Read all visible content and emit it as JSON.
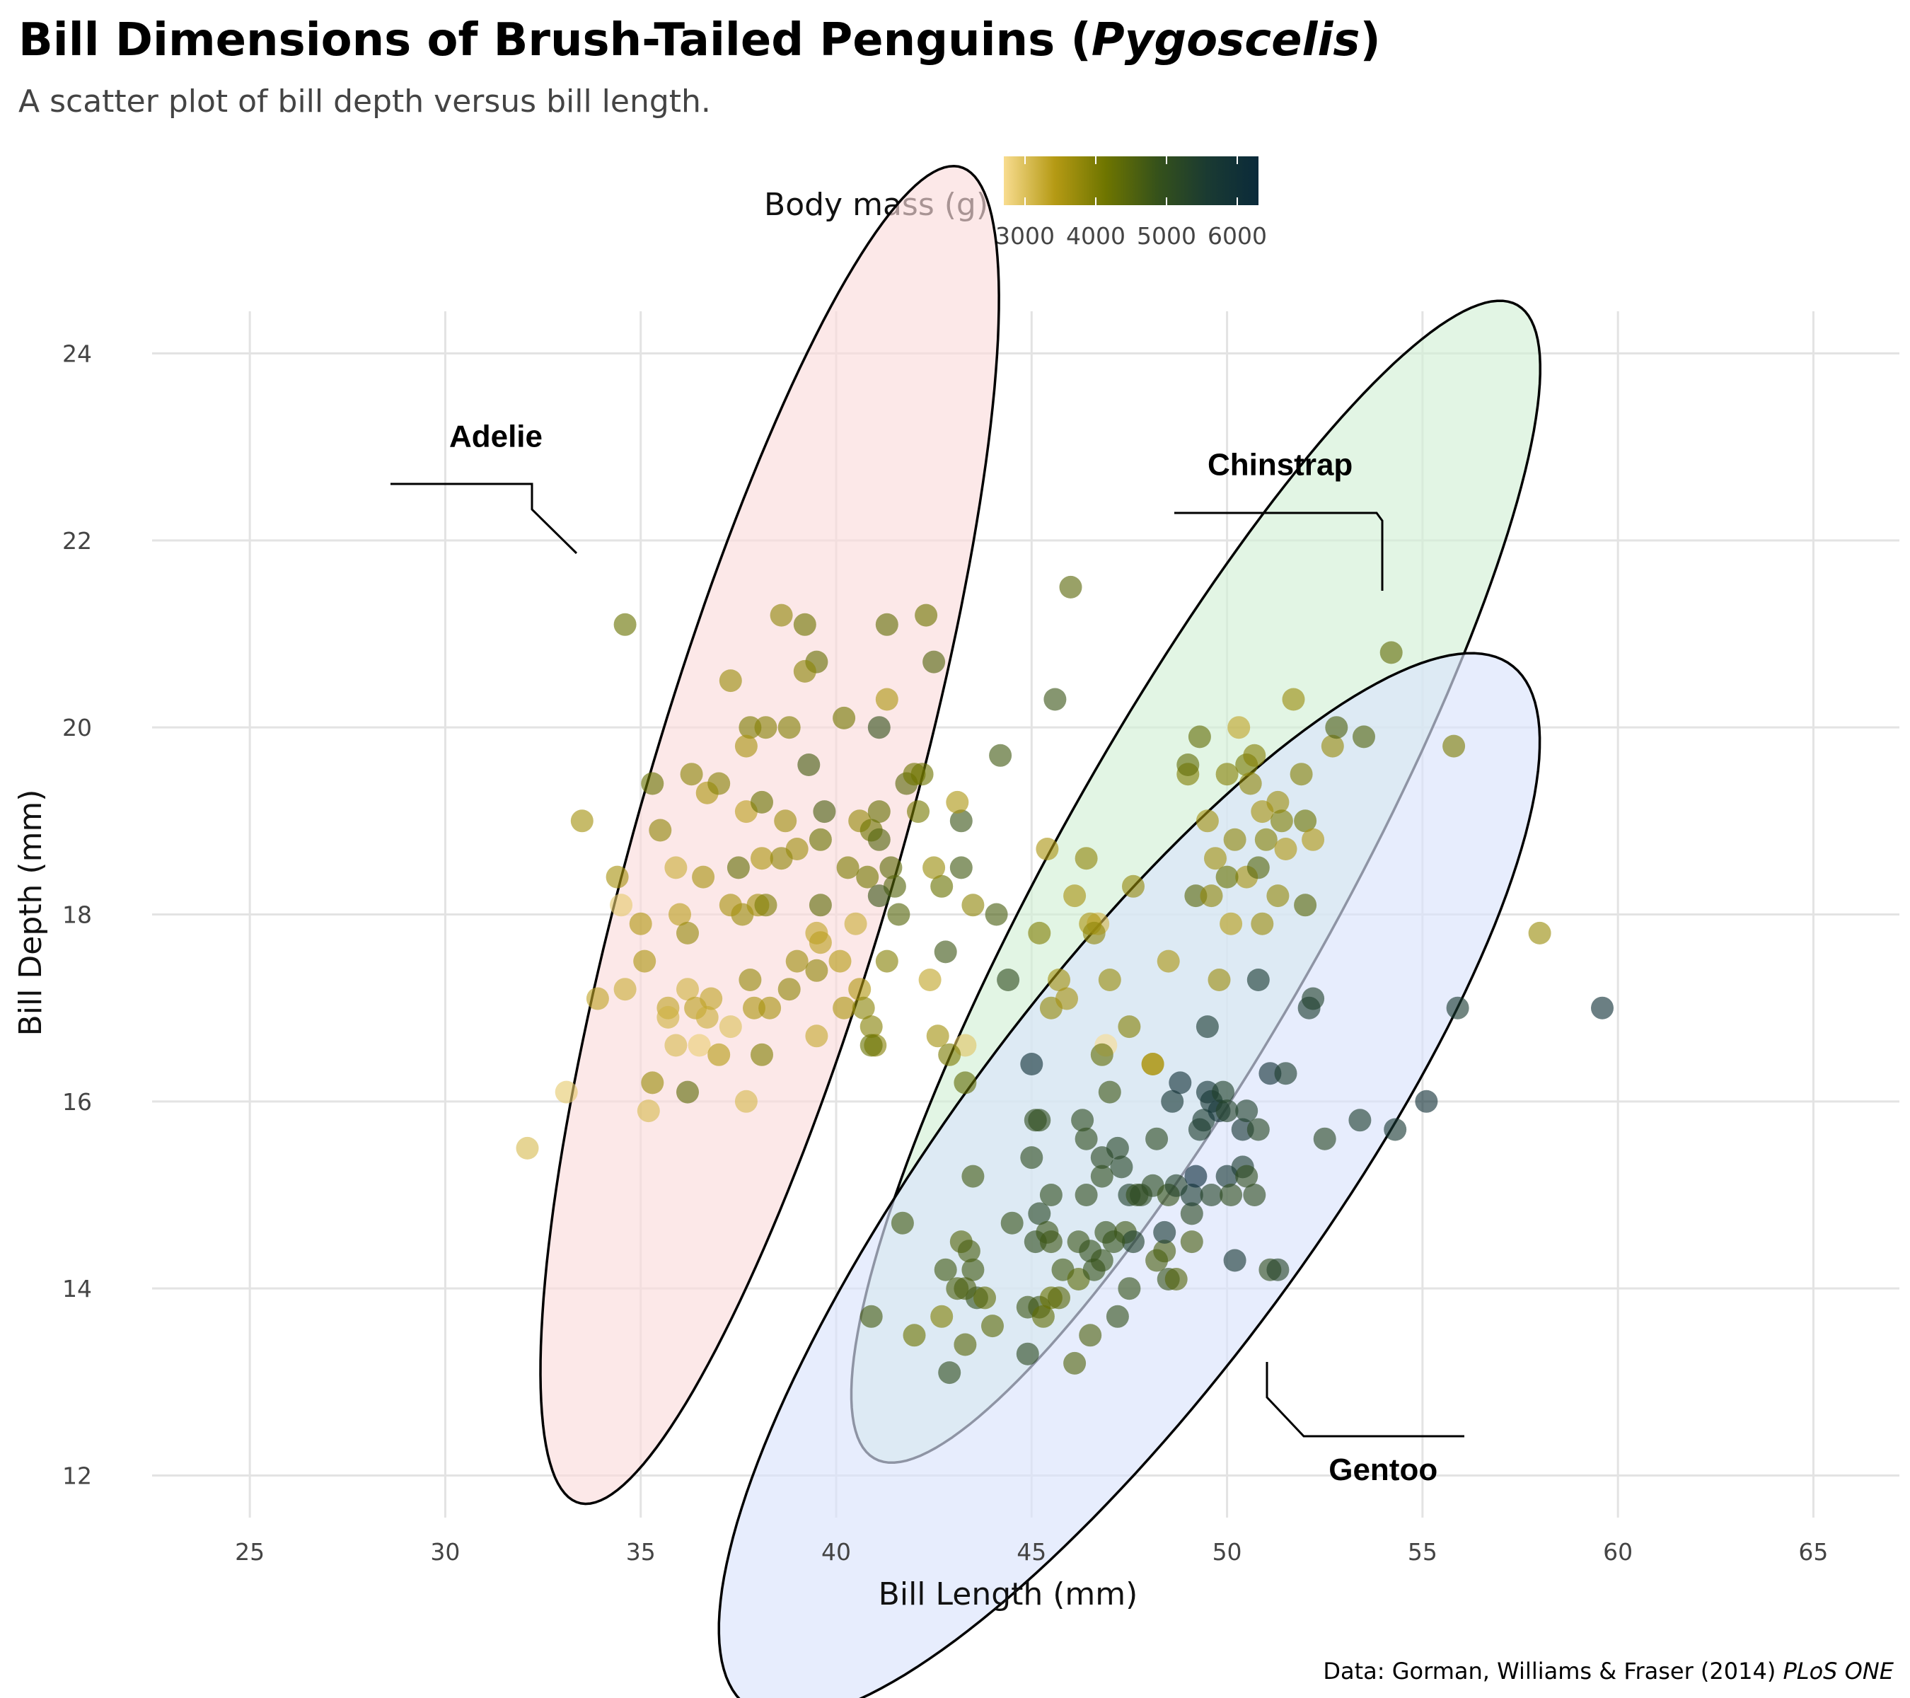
{
  "chart_data": {
    "type": "scatter",
    "title": "Bill Dimensions of Brush-Tailed Penguins (",
    "title_italic": "Pygoscelis",
    "title_end": ")",
    "subtitle": "A scatter plot of bill depth versus bill length.",
    "xlabel": "Bill Length (mm)",
    "ylabel": "Bill Depth (mm)",
    "xlim": [
      22.5,
      67.2
    ],
    "ylim": [
      11.55,
      24.45
    ],
    "xticks": [
      25,
      30,
      35,
      40,
      45,
      50,
      55,
      60,
      65
    ],
    "yticks": [
      12,
      14,
      16,
      18,
      20,
      22,
      24
    ],
    "grid": true,
    "legend": {
      "title": "Body mass (g)",
      "placement": "top",
      "ticks": [
        3000,
        4000,
        5000,
        6000
      ],
      "range": [
        2700,
        6300
      ],
      "colors": [
        "#f8dc8f",
        "#b59a14",
        "#6e7500",
        "#36521a",
        "#1a3a32",
        "#0a2a3a"
      ]
    },
    "caption": "Data: Gorman, Williams & Fraser (2014) ",
    "caption_italic": "PLoS ONE",
    "ellipses": [
      {
        "group": "Adelie",
        "fill": "#fbdcdc",
        "cx": 38.3,
        "cy": 18.85,
        "rx": 8.8,
        "ry": 2.85,
        "angle_deg": 52
      },
      {
        "group": "Chinstrap",
        "fill": "#d3f0d5",
        "cx": 49.2,
        "cy": 18.35,
        "rx": 10.5,
        "ry": 2.45,
        "angle_deg": 34
      },
      {
        "group": "Gentoo",
        "fill": "#dae3fc",
        "cx": 47.5,
        "cy": 15.1,
        "rx": 11.6,
        "ry": 2.85,
        "angle_deg": 26
      }
    ],
    "labels": [
      {
        "text": "Adelie",
        "x": 30.1,
        "y": 23.0
      },
      {
        "text": "Chinstrap",
        "x": 49.5,
        "y": 22.7
      },
      {
        "text": "Gentoo",
        "x": 52.6,
        "y": 11.95
      }
    ],
    "points": [
      [
        34.6,
        21.1,
        4200
      ],
      [
        38.6,
        21.2,
        3800
      ],
      [
        39.2,
        21.1,
        4150
      ],
      [
        41.3,
        21.1,
        4300
      ],
      [
        42.3,
        21.2,
        4150
      ],
      [
        46.0,
        21.5,
        4400
      ],
      [
        37.3,
        20.5,
        3700
      ],
      [
        39.5,
        20.7,
        4250
      ],
      [
        39.2,
        20.6,
        3850
      ],
      [
        42.5,
        20.7,
        4500
      ],
      [
        41.3,
        20.3,
        3500
      ],
      [
        37.8,
        20.0,
        4000
      ],
      [
        38.2,
        20.0,
        3900
      ],
      [
        38.8,
        20.0,
        3950
      ],
      [
        40.2,
        20.1,
        4100
      ],
      [
        41.1,
        20.0,
        4900
      ],
      [
        35.3,
        19.4,
        4200
      ],
      [
        36.3,
        19.5,
        3850
      ],
      [
        37.7,
        19.8,
        3550
      ],
      [
        39.3,
        19.6,
        4650
      ],
      [
        41.8,
        19.4,
        4400
      ],
      [
        42.2,
        19.5,
        4150
      ],
      [
        42.0,
        19.5,
        4150
      ],
      [
        33.5,
        19.0,
        3600
      ],
      [
        35.5,
        18.9,
        3800
      ],
      [
        36.7,
        19.3,
        3500
      ],
      [
        37.0,
        19.4,
        3900
      ],
      [
        37.7,
        19.1,
        3350
      ],
      [
        38.1,
        19.2,
        4200
      ],
      [
        38.7,
        19.0,
        3650
      ],
      [
        39.0,
        18.7,
        3650
      ],
      [
        39.7,
        19.1,
        4600
      ],
      [
        40.6,
        19.0,
        3750
      ],
      [
        40.9,
        18.9,
        4150
      ],
      [
        41.1,
        19.1,
        4250
      ],
      [
        42.1,
        19.1,
        4050
      ],
      [
        43.2,
        19.0,
        4800
      ],
      [
        43.1,
        19.2,
        3500
      ],
      [
        34.4,
        18.4,
        3550
      ],
      [
        34.5,
        18.1,
        2900
      ],
      [
        35.0,
        17.9,
        3450
      ],
      [
        35.9,
        18.5,
        3200
      ],
      [
        36.0,
        18.0,
        3350
      ],
      [
        36.6,
        18.4,
        3550
      ],
      [
        36.2,
        17.8,
        3750
      ],
      [
        37.6,
        18.0,
        3700
      ],
      [
        38.0,
        18.1,
        3600
      ],
      [
        38.1,
        18.6,
        3500
      ],
      [
        38.6,
        18.6,
        3800
      ],
      [
        39.6,
        18.8,
        4200
      ],
      [
        40.3,
        18.5,
        4000
      ],
      [
        40.8,
        18.4,
        4100
      ],
      [
        41.4,
        18.5,
        4350
      ],
      [
        41.5,
        18.3,
        4450
      ],
      [
        42.7,
        18.3,
        4200
      ],
      [
        43.2,
        18.5,
        4700
      ],
      [
        42.5,
        18.5,
        3700
      ],
      [
        43.5,
        18.1,
        3800
      ],
      [
        44.1,
        18.0,
        4600
      ],
      [
        37.3,
        18.1,
        3550
      ],
      [
        37.5,
        18.5,
        4300
      ],
      [
        38.2,
        18.1,
        4000
      ],
      [
        39.5,
        17.8,
        3300
      ],
      [
        39.6,
        17.7,
        3350
      ],
      [
        40.5,
        17.9,
        3200
      ],
      [
        41.1,
        18.2,
        4800
      ],
      [
        41.6,
        18.0,
        4450
      ],
      [
        32.1,
        15.5,
        3050
      ],
      [
        33.1,
        16.1,
        2900
      ],
      [
        33.9,
        17.1,
        3300
      ],
      [
        34.6,
        17.2,
        3200
      ],
      [
        35.1,
        17.5,
        3500
      ],
      [
        35.2,
        15.9,
        3050
      ],
      [
        35.3,
        16.2,
        3700
      ],
      [
        35.7,
        17.0,
        3300
      ],
      [
        35.7,
        16.9,
        3150
      ],
      [
        35.9,
        16.6,
        3050
      ],
      [
        36.2,
        17.2,
        3150
      ],
      [
        36.4,
        17.0,
        3350
      ],
      [
        36.5,
        16.6,
        2850
      ],
      [
        36.7,
        16.9,
        3200
      ],
      [
        36.8,
        17.1,
        3300
      ],
      [
        37.0,
        16.5,
        3400
      ],
      [
        37.3,
        16.8,
        3000
      ],
      [
        37.8,
        17.3,
        3750
      ],
      [
        37.9,
        17.0,
        3500
      ],
      [
        37.7,
        16.0,
        3075
      ],
      [
        38.1,
        16.5,
        3950
      ],
      [
        38.3,
        17.0,
        3550
      ],
      [
        38.8,
        17.2,
        3800
      ],
      [
        39.0,
        17.5,
        3650
      ],
      [
        39.5,
        17.4,
        3800
      ],
      [
        39.5,
        16.7,
        3250
      ],
      [
        40.1,
        17.5,
        3400
      ],
      [
        40.2,
        17.0,
        3500
      ],
      [
        40.6,
        17.2,
        3450
      ],
      [
        40.7,
        17.0,
        3850
      ],
      [
        40.9,
        16.8,
        3900
      ],
      [
        41.0,
        16.6,
        3900
      ],
      [
        41.3,
        17.5,
        3900
      ],
      [
        42.4,
        17.3,
        3300
      ],
      [
        42.6,
        16.7,
        3600
      ],
      [
        43.3,
        16.6,
        2950
      ],
      [
        36.2,
        16.1,
        4350
      ],
      [
        40.9,
        16.6,
        4200
      ],
      [
        39.6,
        18.1,
        4350
      ],
      [
        41.1,
        18.8,
        4500
      ],
      [
        45.6,
        20.3,
        4800
      ],
      [
        46.1,
        18.2,
        3550
      ],
      [
        46.4,
        18.6,
        3800
      ],
      [
        46.7,
        17.9,
        3100
      ],
      [
        46.9,
        16.6,
        2700
      ],
      [
        47.0,
        17.3,
        3700
      ],
      [
        47.5,
        16.8,
        3900
      ],
      [
        47.6,
        18.3,
        3750
      ],
      [
        48.1,
        16.4,
        3500
      ],
      [
        48.5,
        17.5,
        3500
      ],
      [
        49.0,
        19.5,
        3950
      ],
      [
        49.0,
        19.6,
        4300
      ],
      [
        49.2,
        18.2,
        4400
      ],
      [
        49.3,
        19.9,
        4300
      ],
      [
        49.5,
        19.0,
        3600
      ],
      [
        49.6,
        18.2,
        3800
      ],
      [
        49.7,
        18.6,
        3600
      ],
      [
        50.0,
        19.5,
        3900
      ],
      [
        50.1,
        17.9,
        3400
      ],
      [
        50.2,
        18.8,
        3800
      ],
      [
        50.3,
        20.0,
        3300
      ],
      [
        50.5,
        19.6,
        4050
      ],
      [
        50.5,
        18.4,
        3550
      ],
      [
        50.6,
        19.4,
        3800
      ],
      [
        50.7,
        19.7,
        3900
      ],
      [
        50.8,
        18.5,
        4450
      ],
      [
        50.9,
        19.1,
        3550
      ],
      [
        51.0,
        18.8,
        3900
      ],
      [
        51.3,
        18.2,
        3750
      ],
      [
        51.3,
        19.2,
        3650
      ],
      [
        51.4,
        19.0,
        3950
      ],
      [
        51.5,
        18.7,
        3450
      ],
      [
        51.7,
        20.3,
        3700
      ],
      [
        51.9,
        19.5,
        3900
      ],
      [
        52.0,
        18.1,
        4400
      ],
      [
        52.0,
        19.0,
        4150
      ],
      [
        52.2,
        18.8,
        3450
      ],
      [
        52.7,
        19.8,
        3725
      ],
      [
        52.8,
        20.0,
        4550
      ],
      [
        53.5,
        19.9,
        4500
      ],
      [
        54.2,
        20.8,
        4300
      ],
      [
        55.8,
        19.8,
        4000
      ],
      [
        58.0,
        17.8,
        3700
      ],
      [
        49.8,
        17.3,
        3675
      ],
      [
        45.2,
        17.8,
        3950
      ],
      [
        46.5,
        17.9,
        3500
      ],
      [
        46.6,
        17.8,
        3800
      ],
      [
        45.5,
        17.0,
        3750
      ],
      [
        45.7,
        17.3,
        3600
      ],
      [
        45.4,
        18.7,
        3525
      ],
      [
        50.9,
        17.9,
        3675
      ],
      [
        45.9,
        17.1,
        3575
      ],
      [
        50.0,
        18.4,
        4200
      ],
      [
        40.9,
        13.7,
        4650
      ],
      [
        41.7,
        14.7,
        4700
      ],
      [
        42.0,
        13.5,
        4150
      ],
      [
        42.7,
        13.7,
        3950
      ],
      [
        42.8,
        14.2,
        4700
      ],
      [
        42.9,
        13.1,
        5000
      ],
      [
        43.2,
        14.5,
        4450
      ],
      [
        43.3,
        13.4,
        4400
      ],
      [
        43.5,
        14.2,
        4700
      ],
      [
        43.6,
        13.9,
        4900
      ],
      [
        43.8,
        13.9,
        4300
      ],
      [
        44.0,
        13.6,
        4350
      ],
      [
        43.4,
        14.4,
        4600
      ],
      [
        43.1,
        14.0,
        4550
      ],
      [
        43.3,
        14.0,
        4575
      ],
      [
        44.5,
        14.7,
        4850
      ],
      [
        44.9,
        13.3,
        5100
      ],
      [
        44.9,
        13.8,
        4750
      ],
      [
        45.1,
        14.5,
        5000
      ],
      [
        45.2,
        13.8,
        4750
      ],
      [
        45.2,
        14.8,
        5200
      ],
      [
        45.3,
        13.7,
        4300
      ],
      [
        45.4,
        14.6,
        4800
      ],
      [
        45.5,
        13.9,
        4200
      ],
      [
        45.5,
        14.5,
        4750
      ],
      [
        45.5,
        15.0,
        5000
      ],
      [
        45.7,
        13.9,
        4400
      ],
      [
        45.8,
        14.2,
        4700
      ],
      [
        46.1,
        13.2,
        4500
      ],
      [
        46.2,
        14.1,
        4375
      ],
      [
        46.2,
        14.5,
        4800
      ],
      [
        46.3,
        15.8,
        5050
      ],
      [
        46.4,
        15.0,
        4975
      ],
      [
        46.4,
        15.6,
        5000
      ],
      [
        46.5,
        13.5,
        4550
      ],
      [
        46.5,
        14.4,
        4900
      ],
      [
        46.6,
        14.2,
        4850
      ],
      [
        46.8,
        14.3,
        4850
      ],
      [
        46.8,
        15.4,
        5150
      ],
      [
        46.9,
        14.6,
        4875
      ],
      [
        47.2,
        13.7,
        4925
      ],
      [
        47.3,
        15.3,
        5250
      ],
      [
        47.4,
        14.6,
        4725
      ],
      [
        47.5,
        14.0,
        4875
      ],
      [
        47.5,
        15.0,
        5400
      ],
      [
        47.6,
        14.5,
        5400
      ],
      [
        47.7,
        15.0,
        4950
      ],
      [
        47.8,
        15.0,
        5100
      ],
      [
        48.1,
        15.1,
        5100
      ],
      [
        48.2,
        14.3,
        4600
      ],
      [
        48.2,
        15.6,
        5100
      ],
      [
        48.4,
        14.4,
        4600
      ],
      [
        48.4,
        14.6,
        5650
      ],
      [
        48.5,
        14.1,
        4850
      ],
      [
        48.5,
        15.0,
        4850
      ],
      [
        48.6,
        16.0,
        5800
      ],
      [
        48.7,
        14.1,
        4450
      ],
      [
        48.7,
        15.1,
        5350
      ],
      [
        48.8,
        16.2,
        6000
      ],
      [
        49.1,
        14.5,
        4625
      ],
      [
        49.1,
        14.8,
        5150
      ],
      [
        49.1,
        15.0,
        5550
      ],
      [
        49.2,
        15.2,
        6300
      ],
      [
        49.3,
        15.7,
        5450
      ],
      [
        49.4,
        15.8,
        5550
      ],
      [
        49.5,
        16.1,
        5850
      ],
      [
        49.6,
        15.0,
        5300
      ],
      [
        49.6,
        16.0,
        5700
      ],
      [
        49.8,
        15.9,
        5950
      ],
      [
        49.9,
        16.1,
        5400
      ],
      [
        50.0,
        15.2,
        5700
      ],
      [
        50.0,
        15.9,
        5350
      ],
      [
        50.1,
        15.0,
        5000
      ],
      [
        50.2,
        14.3,
        5700
      ],
      [
        50.4,
        15.3,
        5550
      ],
      [
        50.4,
        15.7,
        5750
      ],
      [
        50.5,
        15.2,
        5000
      ],
      [
        50.5,
        15.9,
        5400
      ],
      [
        50.7,
        15.0,
        5050
      ],
      [
        50.8,
        15.7,
        5200
      ],
      [
        51.1,
        14.2,
        5000
      ],
      [
        51.1,
        16.3,
        6000
      ],
      [
        51.3,
        14.2,
        5300
      ],
      [
        51.5,
        16.3,
        5500
      ],
      [
        52.1,
        17.0,
        5550
      ],
      [
        52.2,
        17.1,
        5400
      ],
      [
        52.5,
        15.6,
        5200
      ],
      [
        53.4,
        15.8,
        5500
      ],
      [
        54.3,
        15.7,
        5650
      ],
      [
        55.1,
        16.0,
        6000
      ],
      [
        55.9,
        17.0,
        5600
      ],
      [
        59.6,
        17.0,
        6050
      ],
      [
        45.0,
        16.4,
        6050
      ],
      [
        48.1,
        16.4,
        3500
      ],
      [
        49.5,
        16.8,
        5600
      ],
      [
        50.8,
        17.3,
        5600
      ],
      [
        47.0,
        16.1,
        4750
      ],
      [
        46.8,
        16.5,
        4300
      ],
      [
        43.5,
        15.2,
        4700
      ],
      [
        42.8,
        17.6,
        4750
      ],
      [
        44.4,
        17.3,
        5000
      ],
      [
        45.0,
        15.4,
        5050
      ],
      [
        45.1,
        15.8,
        5000
      ],
      [
        44.2,
        19.7,
        4700
      ],
      [
        43.3,
        16.2,
        4300
      ],
      [
        42.9,
        16.5,
        4000
      ],
      [
        45.2,
        15.8,
        5000
      ],
      [
        46.8,
        15.2,
        5000
      ],
      [
        47.1,
        14.5,
        4875
      ],
      [
        47.2,
        15.5,
        5250
      ]
    ]
  }
}
